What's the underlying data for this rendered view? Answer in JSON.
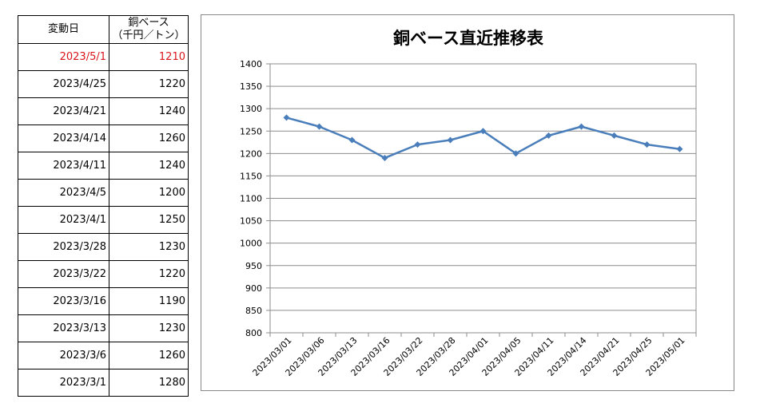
{
  "table": {
    "header": {
      "date": "変動日",
      "price_line1": "銅ベース",
      "price_line2": "（千円／トン）"
    },
    "rows": [
      {
        "date": "2023/5/1",
        "price": "1210"
      },
      {
        "date": "2023/4/25",
        "price": "1220"
      },
      {
        "date": "2023/4/21",
        "price": "1240"
      },
      {
        "date": "2023/4/14",
        "price": "1260"
      },
      {
        "date": "2023/4/11",
        "price": "1240"
      },
      {
        "date": "2023/4/5",
        "price": "1200"
      },
      {
        "date": "2023/4/1",
        "price": "1250"
      },
      {
        "date": "2023/3/28",
        "price": "1230"
      },
      {
        "date": "2023/3/22",
        "price": "1220"
      },
      {
        "date": "2023/3/16",
        "price": "1190"
      },
      {
        "date": "2023/3/13",
        "price": "1230"
      },
      {
        "date": "2023/3/6",
        "price": "1260"
      },
      {
        "date": "2023/3/1",
        "price": "1280"
      }
    ],
    "highlight_color": "#d9151b"
  },
  "chart_data": {
    "type": "line",
    "title": "銅ベース直近推移表",
    "categories": [
      "2023/03/01",
      "2023/03/06",
      "2023/03/13",
      "2023/03/16",
      "2023/03/22",
      "2023/03/28",
      "2023/04/01",
      "2023/04/05",
      "2023/04/11",
      "2023/04/14",
      "2023/04/21",
      "2023/04/25",
      "2023/05/01"
    ],
    "series": [
      {
        "values": [
          1280,
          1260,
          1230,
          1190,
          1220,
          1230,
          1250,
          1200,
          1240,
          1260,
          1240,
          1220,
          1210
        ],
        "color": "#4a7ebb",
        "marker": "diamond"
      }
    ],
    "ylim": [
      800,
      1400
    ],
    "yticks": [
      800,
      850,
      900,
      950,
      1000,
      1050,
      1100,
      1150,
      1200,
      1250,
      1300,
      1350,
      1400
    ],
    "xlabel": "",
    "ylabel": "",
    "grid": true,
    "legend": "none"
  }
}
